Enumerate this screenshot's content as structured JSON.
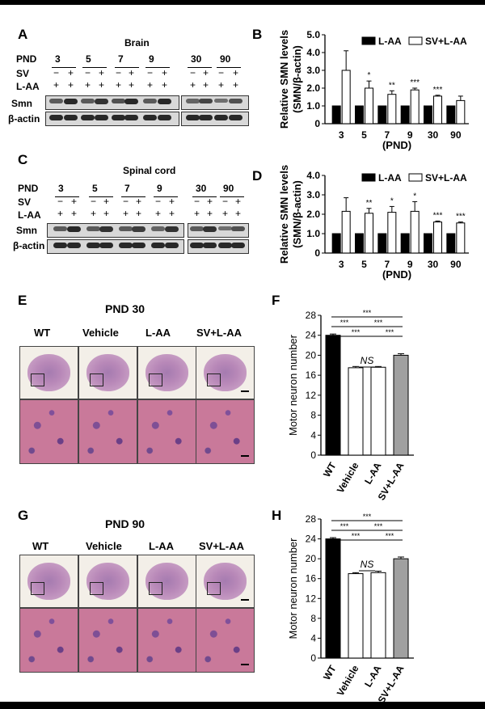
{
  "panels": {
    "A": "A",
    "B": "B",
    "C": "C",
    "D": "D",
    "E": "E",
    "F": "F",
    "G": "G",
    "H": "H"
  },
  "panelA": {
    "tissue": "Brain",
    "row_labels": [
      "PND",
      "SV",
      "L-AA",
      "Smn",
      "β-actin"
    ],
    "pnd_groups": [
      "3",
      "5",
      "7",
      "9",
      "30",
      "90"
    ],
    "sv_signs": [
      "−",
      "+",
      "−",
      "+",
      "−",
      "+",
      "−",
      "+",
      "−",
      "+",
      "−",
      "+"
    ],
    "laa_signs": [
      "+",
      "+",
      "+",
      "+",
      "+",
      "+",
      "+",
      "+",
      "+",
      "+",
      "+",
      "+"
    ],
    "smn_intensity": [
      0.55,
      0.8,
      0.55,
      0.75,
      0.6,
      0.8,
      0.55,
      0.8,
      0.5,
      0.65,
      0.45,
      0.6
    ],
    "actin_intensity": [
      0.8,
      0.8,
      0.8,
      0.8,
      0.8,
      0.8,
      0.8,
      0.8,
      0.8,
      0.8,
      0.8,
      0.8
    ]
  },
  "panelC": {
    "tissue": "Spinal cord",
    "row_labels": [
      "PND",
      "SV",
      "L-AA",
      "Smn",
      "β-actin"
    ],
    "pnd_groups": [
      "3",
      "5",
      "7",
      "9",
      "30",
      "90"
    ],
    "sv_signs": [
      "−",
      "+",
      "−",
      "+",
      "−",
      "+",
      "−",
      "+",
      "−",
      "+",
      "−",
      "+"
    ],
    "laa_signs": [
      "+",
      "+",
      "+",
      "+",
      "+",
      "+",
      "+",
      "+",
      "+",
      "+",
      "+",
      "+"
    ],
    "smn_intensity": [
      0.55,
      0.8,
      0.55,
      0.75,
      0.55,
      0.7,
      0.5,
      0.75,
      0.55,
      0.75,
      0.45,
      0.6
    ],
    "actin_intensity": [
      0.8,
      0.8,
      0.8,
      0.8,
      0.8,
      0.8,
      0.8,
      0.8,
      0.8,
      0.8,
      0.8,
      0.8
    ]
  },
  "panelE": {
    "title": "PND 30",
    "groups": [
      "WT",
      "Vehicle",
      "L-AA",
      "SV+L-AA"
    ]
  },
  "panelG": {
    "title": "PND 90",
    "groups": [
      "WT",
      "Vehicle",
      "L-AA",
      "SV+L-AA"
    ]
  },
  "chart_data": [
    {
      "id": "B",
      "type": "bar",
      "ylabel": "Relative SMN levels (SMN/β-actin)",
      "ylabel_lines": [
        "Relative SMN levels",
        "(SMN/β-actin)"
      ],
      "xlabel": "(PND)",
      "categories": [
        "3",
        "5",
        "7",
        "9",
        "30",
        "90"
      ],
      "series": [
        {
          "name": "L-AA",
          "values": [
            1,
            1,
            1,
            1,
            1,
            1
          ],
          "errors": [
            0,
            0,
            0,
            0,
            0,
            0
          ],
          "color": "#000000"
        },
        {
          "name": "SV+L-AA",
          "values": [
            3.0,
            2.0,
            1.65,
            1.9,
            1.55,
            1.3
          ],
          "errors": [
            1.1,
            0.4,
            0.2,
            0.1,
            0.05,
            0.25
          ],
          "color": "#ffffff"
        }
      ],
      "significance": [
        "",
        "*",
        "**",
        "***",
        "***",
        ""
      ],
      "ylim": [
        0,
        5
      ],
      "yticks": [
        "0",
        "1.0",
        "2.0",
        "3.0",
        "4.0",
        "5.0"
      ],
      "legend": "top"
    },
    {
      "id": "D",
      "type": "bar",
      "ylabel": "Relative SMN levels (SMN/β-actin)",
      "ylabel_lines": [
        "Relative SMN levels",
        "(SMN/β-actin)"
      ],
      "xlabel": "(PND)",
      "categories": [
        "3",
        "5",
        "7",
        "9",
        "30",
        "90"
      ],
      "series": [
        {
          "name": "L-AA",
          "values": [
            1,
            1,
            1,
            1,
            1,
            1
          ],
          "errors": [
            0,
            0,
            0,
            0,
            0,
            0
          ],
          "color": "#000000"
        },
        {
          "name": "SV+L-AA",
          "values": [
            2.15,
            2.05,
            2.1,
            2.15,
            1.6,
            1.55
          ],
          "errors": [
            0.7,
            0.25,
            0.3,
            0.5,
            0.05,
            0.05
          ],
          "color": "#ffffff"
        }
      ],
      "significance": [
        "",
        "**",
        "*",
        "*",
        "***",
        "***"
      ],
      "ylim": [
        0,
        4
      ],
      "yticks": [
        "0",
        "1.0",
        "2.0",
        "3.0",
        "4.0"
      ],
      "legend": "top"
    },
    {
      "id": "F",
      "type": "bar",
      "ylabel": "Motor neuron number",
      "categories": [
        "WT",
        "Vehicle",
        "L-AA",
        "SV+L-AA"
      ],
      "values": [
        24.0,
        17.5,
        17.6,
        20.0
      ],
      "errors": [
        0.25,
        0.25,
        0.15,
        0.3
      ],
      "colors": [
        "#000000",
        "#ffffff",
        "#ffffff",
        "#a0a0a0"
      ],
      "ylim": [
        0,
        28
      ],
      "yticks": [
        "0",
        "4",
        "8",
        "12",
        "16",
        "20",
        "24",
        "28"
      ],
      "brackets": [
        {
          "from": 0,
          "to": 3,
          "label": "***"
        },
        {
          "from": 0,
          "to": 1,
          "label": "***"
        },
        {
          "from": 1,
          "to": 3,
          "label": "***"
        },
        {
          "from": 0,
          "to": 2,
          "label": "***"
        },
        {
          "from": 2,
          "to": 3,
          "label": "***"
        },
        {
          "from": 1,
          "to": 2,
          "label": "NS"
        }
      ]
    },
    {
      "id": "H",
      "type": "bar",
      "ylabel": "Motor neuron number",
      "categories": [
        "WT",
        "Vehicle",
        "L-AA",
        "SV+L-AA"
      ],
      "values": [
        24.0,
        17.0,
        17.2,
        20.0
      ],
      "errors": [
        0.25,
        0.2,
        0.3,
        0.35
      ],
      "colors": [
        "#000000",
        "#ffffff",
        "#ffffff",
        "#a0a0a0"
      ],
      "ylim": [
        0,
        28
      ],
      "yticks": [
        "0",
        "4",
        "8",
        "12",
        "16",
        "20",
        "24",
        "28"
      ],
      "brackets": [
        {
          "from": 0,
          "to": 3,
          "label": "***"
        },
        {
          "from": 0,
          "to": 1,
          "label": "***"
        },
        {
          "from": 1,
          "to": 3,
          "label": "***"
        },
        {
          "from": 0,
          "to": 2,
          "label": "***"
        },
        {
          "from": 2,
          "to": 3,
          "label": "***"
        },
        {
          "from": 1,
          "to": 2,
          "label": "NS"
        }
      ]
    }
  ]
}
